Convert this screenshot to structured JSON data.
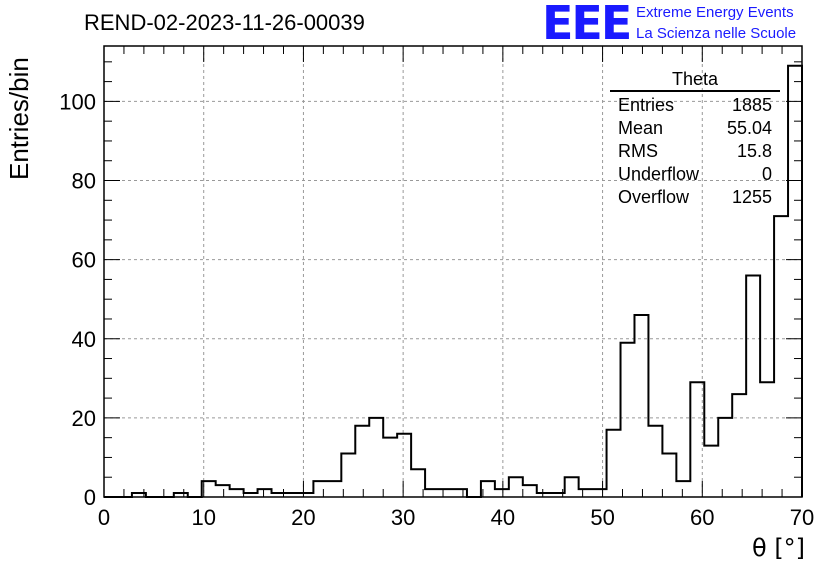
{
  "header": {
    "run_title": "REND-02-2023-11-26-00039",
    "logo_text": "EEE",
    "logo_line1": "Extreme Energy Events",
    "logo_line2": "La Scienza nelle Scuole"
  },
  "stats_box": {
    "name": "Theta",
    "rows": [
      {
        "label": "Entries",
        "value": "1885"
      },
      {
        "label": "Mean",
        "value": "55.04"
      },
      {
        "label": "RMS",
        "value": "15.8"
      },
      {
        "label": "Underflow",
        "value": "0"
      },
      {
        "label": "Overflow",
        "value": "1255"
      }
    ]
  },
  "colors": {
    "logo": "#1a1aff",
    "histogram": "#000000",
    "grid": "#999999"
  },
  "chart_data": {
    "type": "bar",
    "title": "REND-02-2023-11-26-00039",
    "xlabel": "θ [°]",
    "ylabel": "Entries/bin",
    "xlim": [
      0,
      70
    ],
    "ylim": [
      0,
      114
    ],
    "bin_width": 1.4,
    "xticks": [
      0,
      10,
      20,
      30,
      40,
      50,
      60,
      70
    ],
    "yticks": [
      0,
      20,
      40,
      60,
      80,
      100
    ],
    "grid": true,
    "histogram_style": "step",
    "legend": "top-right",
    "bins": [
      {
        "x": 0.0,
        "y": 0
      },
      {
        "x": 1.4,
        "y": 0
      },
      {
        "x": 2.8,
        "y": 1
      },
      {
        "x": 4.2,
        "y": 0
      },
      {
        "x": 5.6,
        "y": 0
      },
      {
        "x": 7.0,
        "y": 1
      },
      {
        "x": 8.4,
        "y": 0
      },
      {
        "x": 9.8,
        "y": 4
      },
      {
        "x": 11.2,
        "y": 3
      },
      {
        "x": 12.6,
        "y": 2
      },
      {
        "x": 14.0,
        "y": 1
      },
      {
        "x": 15.4,
        "y": 2
      },
      {
        "x": 16.8,
        "y": 1
      },
      {
        "x": 18.2,
        "y": 1
      },
      {
        "x": 19.6,
        "y": 1
      },
      {
        "x": 21.0,
        "y": 4
      },
      {
        "x": 22.4,
        "y": 4
      },
      {
        "x": 23.8,
        "y": 11
      },
      {
        "x": 25.2,
        "y": 18
      },
      {
        "x": 26.6,
        "y": 20
      },
      {
        "x": 28.0,
        "y": 15
      },
      {
        "x": 29.4,
        "y": 16
      },
      {
        "x": 30.8,
        "y": 7
      },
      {
        "x": 32.2,
        "y": 2
      },
      {
        "x": 33.6,
        "y": 2
      },
      {
        "x": 35.0,
        "y": 2
      },
      {
        "x": 36.4,
        "y": 0
      },
      {
        "x": 37.8,
        "y": 4
      },
      {
        "x": 39.2,
        "y": 2
      },
      {
        "x": 40.6,
        "y": 5
      },
      {
        "x": 42.0,
        "y": 3
      },
      {
        "x": 43.4,
        "y": 1
      },
      {
        "x": 44.8,
        "y": 1
      },
      {
        "x": 46.2,
        "y": 5
      },
      {
        "x": 47.6,
        "y": 2
      },
      {
        "x": 49.0,
        "y": 2
      },
      {
        "x": 50.4,
        "y": 17
      },
      {
        "x": 51.8,
        "y": 39
      },
      {
        "x": 53.2,
        "y": 46
      },
      {
        "x": 54.6,
        "y": 18
      },
      {
        "x": 56.0,
        "y": 11
      },
      {
        "x": 57.4,
        "y": 4
      },
      {
        "x": 58.8,
        "y": 29
      },
      {
        "x": 60.2,
        "y": 13
      },
      {
        "x": 61.6,
        "y": 20
      },
      {
        "x": 63.0,
        "y": 26
      },
      {
        "x": 64.4,
        "y": 56
      },
      {
        "x": 65.8,
        "y": 29
      },
      {
        "x": 67.2,
        "y": 71
      },
      {
        "x": 68.6,
        "y": 109
      }
    ]
  }
}
